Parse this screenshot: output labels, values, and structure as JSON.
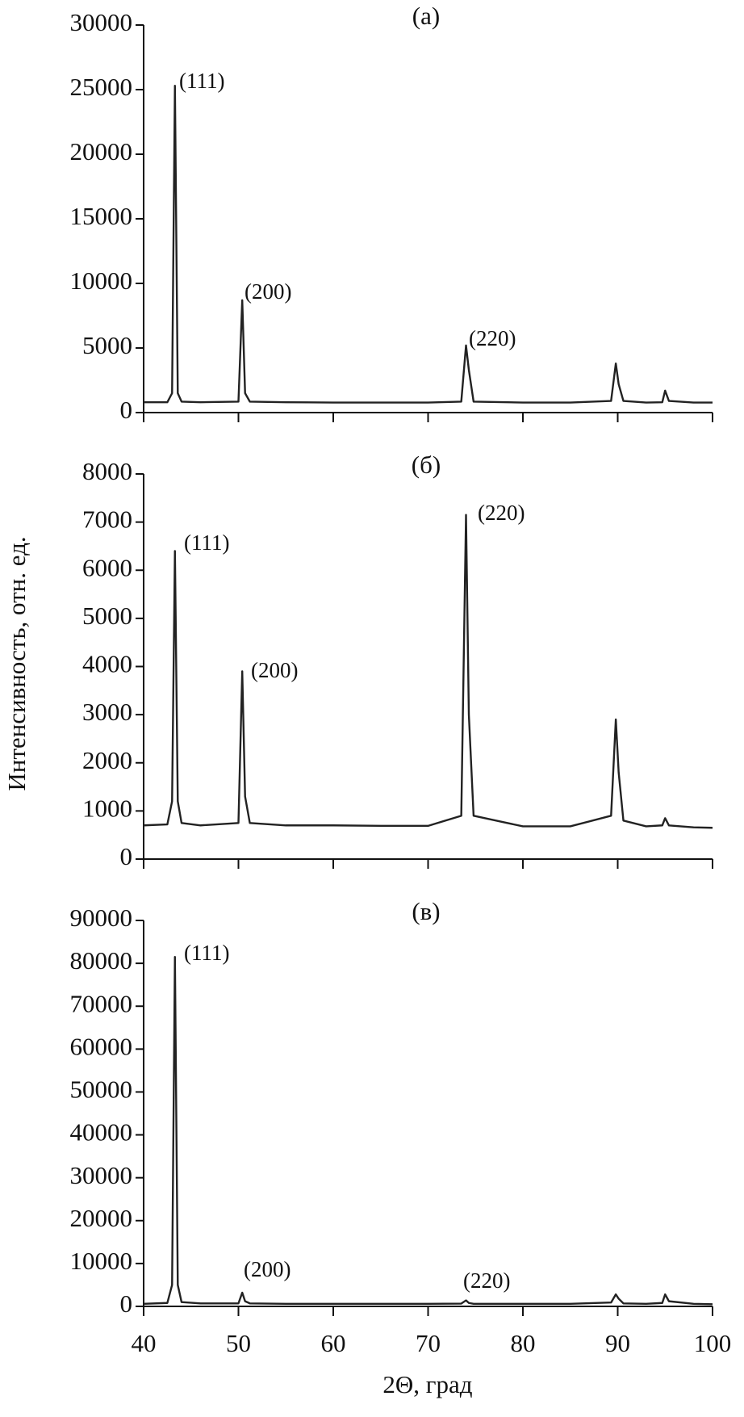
{
  "y_label": "Интенсивность, отн. ед.",
  "x_label": "2Θ, град",
  "chart_data": [
    {
      "type": "line",
      "title": "(а)",
      "x": [
        40,
        42.5,
        43,
        43.3,
        43.6,
        44,
        46,
        50,
        50.4,
        50.7,
        51.2,
        55,
        60,
        65,
        70,
        73.5,
        74.0,
        74.3,
        74.8,
        80,
        85,
        89.3,
        89.8,
        90.1,
        90.6,
        93,
        94.7,
        95.0,
        95.4,
        98,
        100
      ],
      "series": [
        {
          "color": "#222222",
          "values": [
            800,
            800,
            1500,
            25300,
            1500,
            850,
            800,
            850,
            8700,
            1500,
            850,
            800,
            780,
            780,
            780,
            850,
            5200,
            3300,
            850,
            780,
            780,
            900,
            3800,
            2200,
            900,
            780,
            800,
            1700,
            900,
            780,
            780
          ]
        }
      ],
      "xlim": [
        40,
        100
      ],
      "xticks": [
        40,
        50,
        60,
        70,
        80,
        90,
        100
      ],
      "ylim": [
        0,
        30000
      ],
      "yticks": [
        0,
        5000,
        10000,
        15000,
        20000,
        25000,
        30000
      ],
      "annotations": [
        "(111)",
        "(200)",
        "(220)"
      ]
    },
    {
      "type": "line",
      "title": "(б)",
      "x": [
        40,
        42.5,
        43,
        43.3,
        43.6,
        44,
        46,
        50,
        50.4,
        50.7,
        51.2,
        55,
        60,
        65,
        70,
        73.5,
        74.0,
        74.3,
        74.8,
        80,
        85,
        89.3,
        89.8,
        90.1,
        90.6,
        93,
        94.7,
        95.0,
        95.4,
        98,
        100
      ],
      "series": [
        {
          "color": "#222222",
          "values": [
            700,
            720,
            1200,
            6400,
            1200,
            750,
            700,
            750,
            3900,
            1300,
            750,
            700,
            700,
            690,
            690,
            900,
            7150,
            3000,
            900,
            680,
            680,
            900,
            2900,
            1800,
            800,
            680,
            700,
            850,
            700,
            660,
            650
          ]
        }
      ],
      "xlim": [
        40,
        100
      ],
      "xticks": [
        40,
        50,
        60,
        70,
        80,
        90,
        100
      ],
      "ylim": [
        0,
        8000
      ],
      "yticks": [
        0,
        1000,
        2000,
        3000,
        4000,
        5000,
        6000,
        7000,
        8000
      ],
      "annotations": [
        "(111)",
        "(200)",
        "(220)"
      ]
    },
    {
      "type": "line",
      "title": "(в)",
      "x": [
        40,
        42.5,
        43,
        43.3,
        43.6,
        44,
        46,
        50,
        50.4,
        50.7,
        51.2,
        55,
        60,
        65,
        70,
        73.5,
        74.0,
        74.3,
        74.8,
        80,
        85,
        89.3,
        89.8,
        90.1,
        90.6,
        93,
        94.7,
        95.0,
        95.4,
        98,
        100
      ],
      "series": [
        {
          "color": "#222222",
          "values": [
            600,
            800,
            5000,
            81500,
            5000,
            1000,
            700,
            700,
            3200,
            1200,
            700,
            600,
            600,
            600,
            600,
            650,
            1400,
            800,
            600,
            600,
            600,
            900,
            2800,
            1800,
            700,
            600,
            800,
            2800,
            1200,
            600,
            500
          ]
        }
      ],
      "xlim": [
        40,
        100
      ],
      "xticks": [
        40,
        50,
        60,
        70,
        80,
        90,
        100
      ],
      "ylim": [
        0,
        90000
      ],
      "yticks": [
        0,
        10000,
        20000,
        30000,
        40000,
        50000,
        60000,
        70000,
        80000,
        90000
      ],
      "annotations": [
        "(111)",
        "(200)",
        "(220)"
      ]
    }
  ]
}
